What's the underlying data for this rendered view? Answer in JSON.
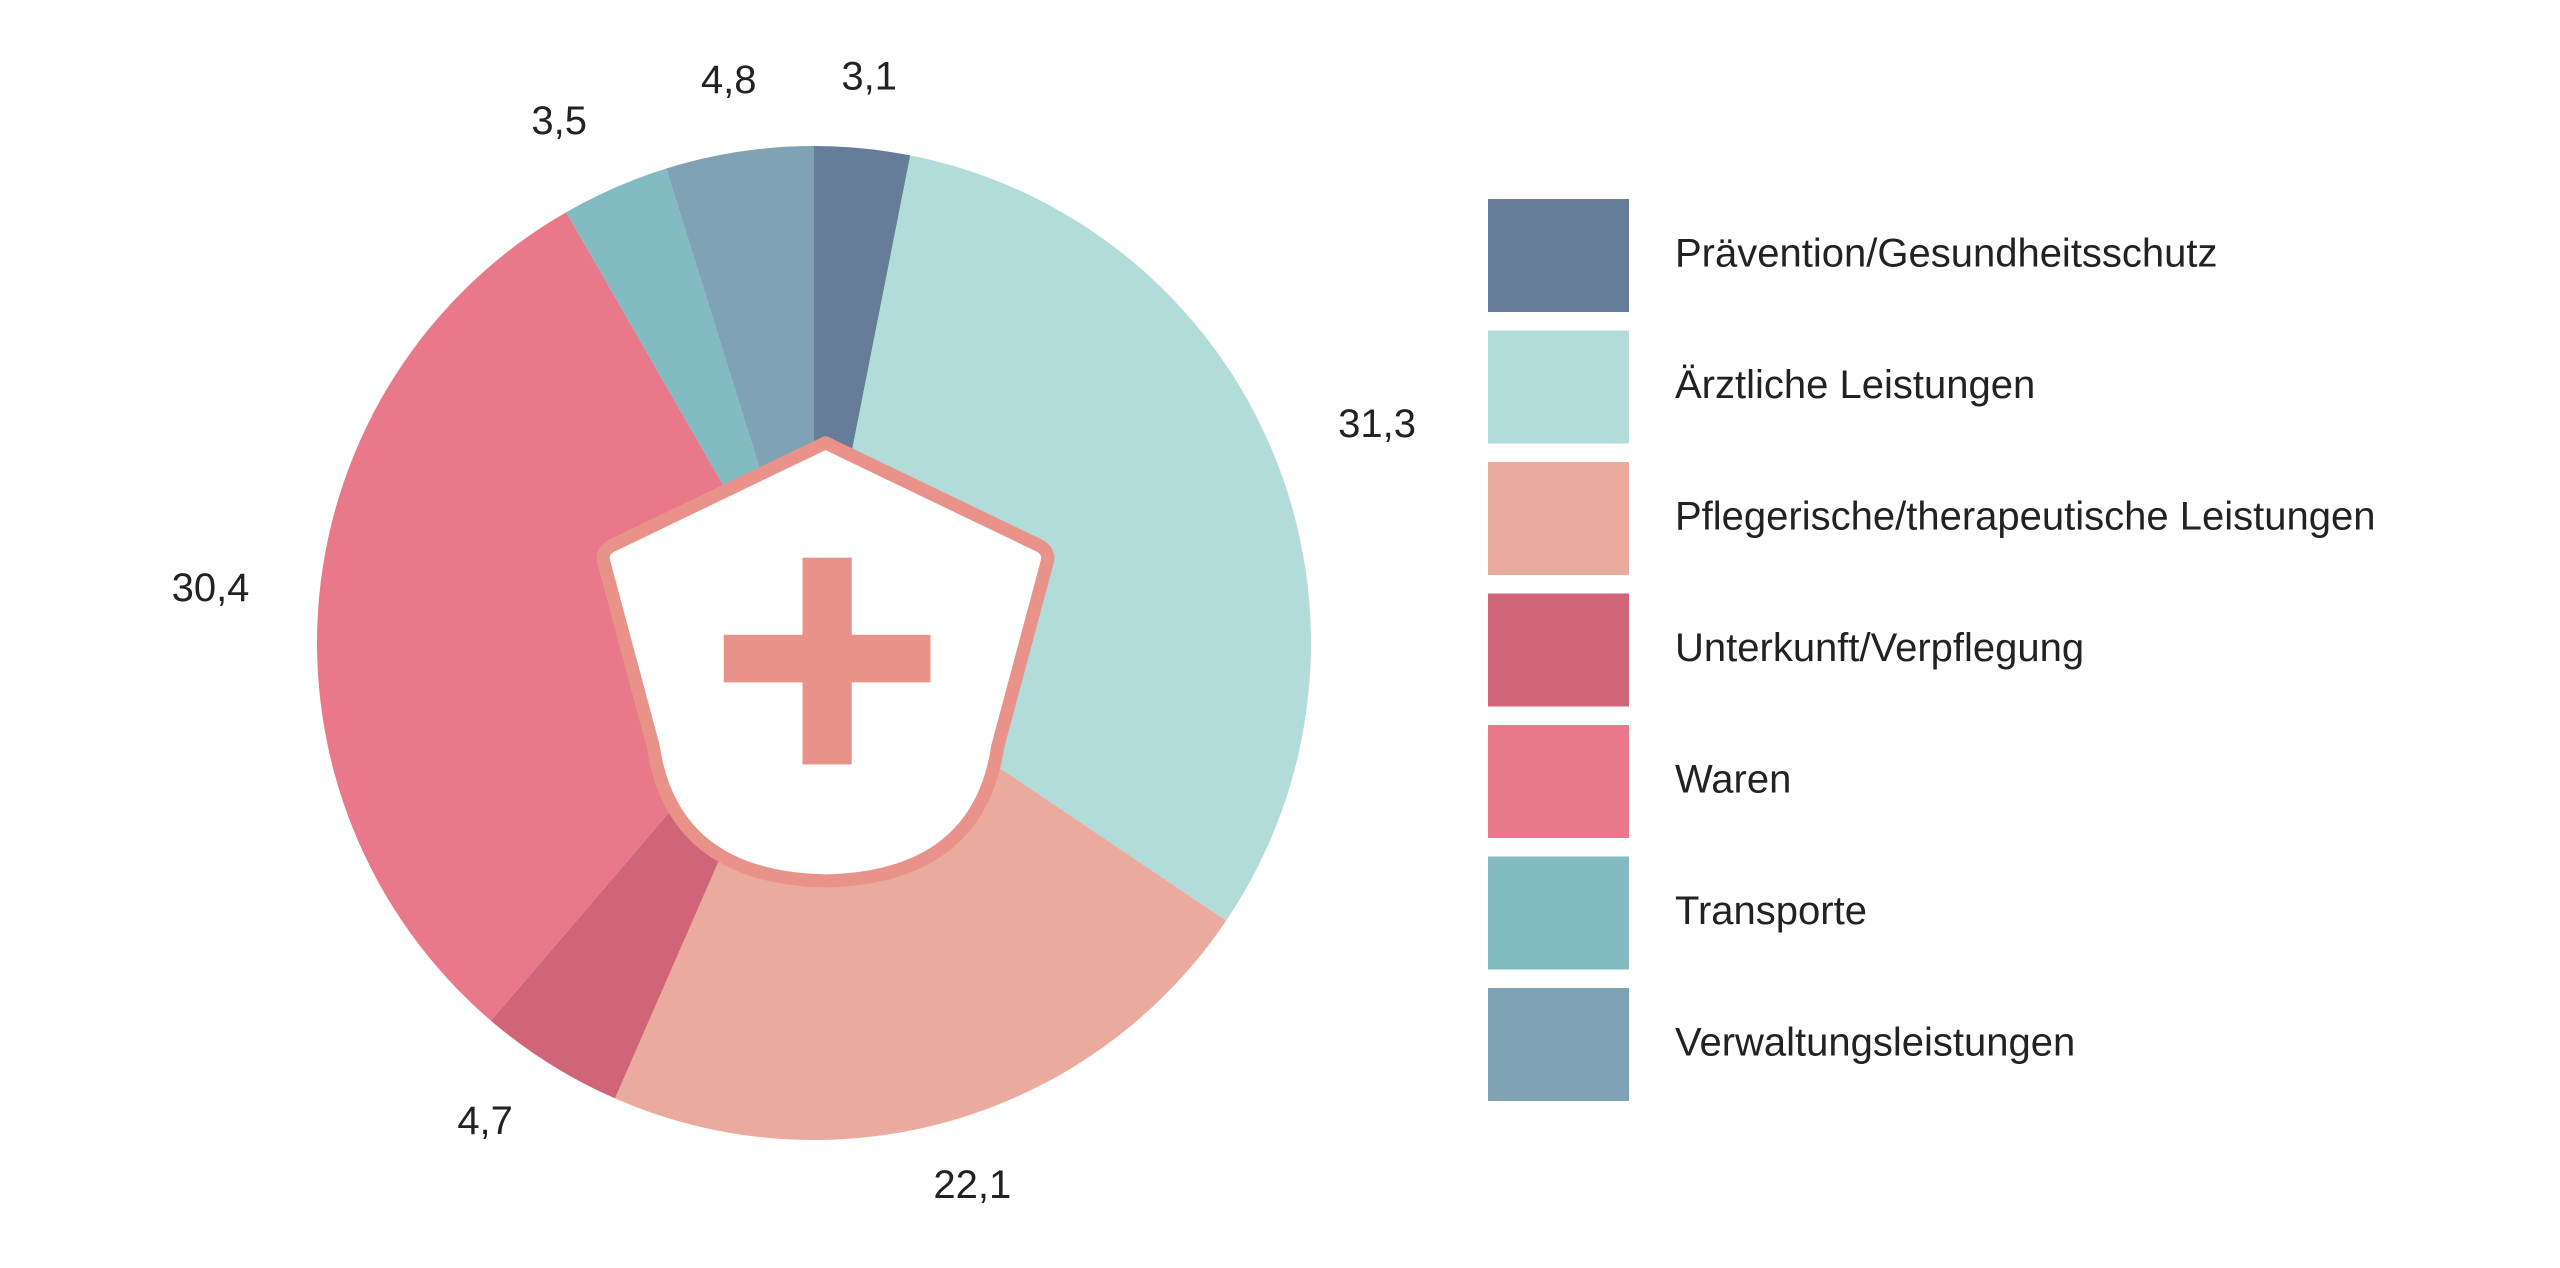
{
  "chart_data": {
    "type": "pie",
    "categories": [
      "Prävention/Gesundheitsschutz",
      "Ärztliche Leistungen",
      "Pflegerische/therapeutische Leistungen",
      "Unterkunft/Verpflegung",
      "Waren",
      "Transporte",
      "Verwaltungsleistungen"
    ],
    "values": [
      3.1,
      31.3,
      22.1,
      4.7,
      30.4,
      3.5,
      4.8
    ],
    "value_labels": [
      "3,1",
      "31,3",
      "22,1",
      "4,7",
      "30,4",
      "3,5",
      "4,8"
    ],
    "colors": [
      "#667d9a",
      "#b2dcda",
      "#ebaa9e",
      "#d06478",
      "#e8788a",
      "#82bcc2",
      "#7fa3b4"
    ]
  }
}
